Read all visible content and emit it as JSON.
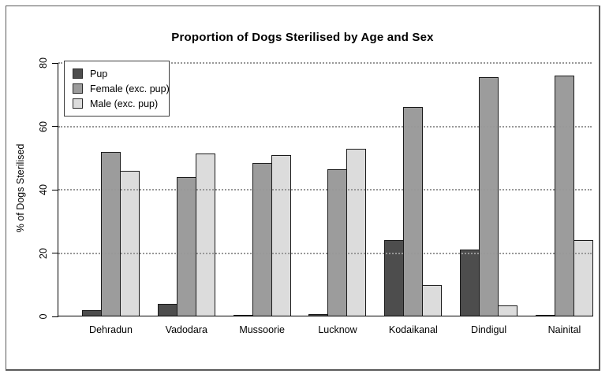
{
  "window": {
    "background": "#ffffff",
    "frame_border_color": "#5a5a5a"
  },
  "chart_data": {
    "type": "bar",
    "title": "Proportion of Dogs Sterilised by Age and Sex",
    "xlabel": "",
    "ylabel": "% of Dogs Sterilised",
    "categories": [
      "Dehradun",
      "Vadodara",
      "Mussoorie",
      "Lucknow",
      "Kodaikanal",
      "Dindigul",
      "Nainital"
    ],
    "series": [
      {
        "name": "Pup",
        "color": "#4d4d4d",
        "values": [
          2,
          4,
          0.3,
          0.7,
          24,
          21,
          0.3
        ]
      },
      {
        "name": "Female (exc. pup)",
        "color": "#9c9c9c",
        "values": [
          52,
          44,
          48.5,
          46.5,
          66,
          75.5,
          76
        ]
      },
      {
        "name": "Male (exc. pup)",
        "color": "#dcdcdc",
        "values": [
          46,
          51.5,
          51,
          53,
          10,
          3.5,
          24
        ]
      }
    ],
    "ylim": [
      0,
      80
    ],
    "yticks": [
      0,
      20,
      40,
      60,
      80
    ],
    "grid": "horizontal dotted at yticks",
    "gridline_color": "#989898",
    "bar_border_color": "#1a1a1a",
    "axis_color": "#000000",
    "legend_position": "top-left"
  }
}
